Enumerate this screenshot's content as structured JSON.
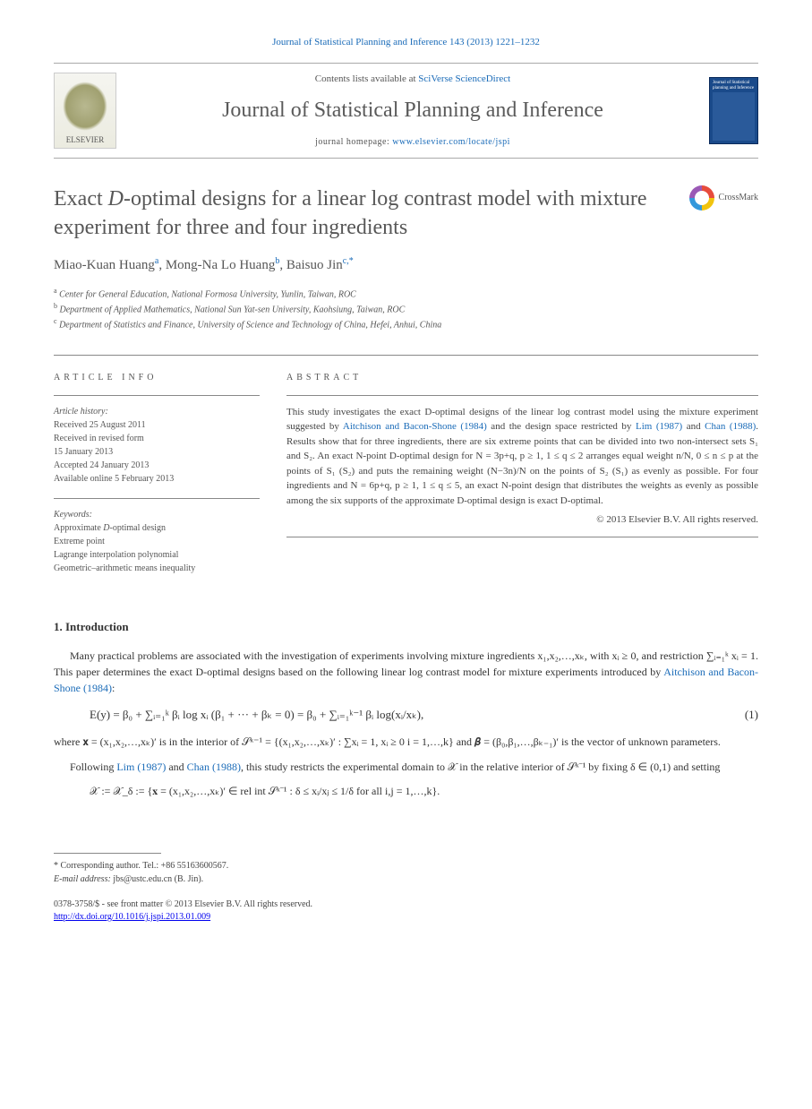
{
  "header": {
    "citation": "Journal of Statistical Planning and Inference 143 (2013) 1221–1232",
    "citation_link": "#"
  },
  "banner": {
    "elsevier_label": "ELSEVIER",
    "contents_prefix": "Contents lists available at ",
    "contents_link_text": "SciVerse ScienceDirect",
    "journal_title": "Journal of Statistical Planning and Inference",
    "homepage_prefix": "journal homepage: ",
    "homepage_url": "www.elsevier.com/locate/jspi",
    "cover_title": "Journal of Statistical planning and Inference"
  },
  "crossmark_label": "CrossMark",
  "article": {
    "title_prefix": "Exact ",
    "title_italic": "D",
    "title_rest": "-optimal designs for a linear log contrast model with mixture experiment for three and four ingredients",
    "authors_html": "Miao-Kuan Huang|a|, Mong-Na Lo Huang|b|, Baisuo Jin|c,*",
    "affiliations": {
      "a": "Center for General Education, National Formosa University, Yunlin, Taiwan, ROC",
      "b": "Department of Applied Mathematics, National Sun Yat-sen University, Kaohsiung, Taiwan, ROC",
      "c": "Department of Statistics and Finance, University of Science and Technology of China, Hefei, Anhui, China"
    }
  },
  "article_info": {
    "label": "article info",
    "history_label": "Article history:",
    "history": [
      "Received 25 August 2011",
      "Received in revised form",
      "15 January 2013",
      "Accepted 24 January 2013",
      "Available online 5 February 2013"
    ],
    "keywords_label": "Keywords:",
    "keywords": [
      "Approximate D-optimal design",
      "Extreme point",
      "Lagrange interpolation polynomial",
      "Geometric–arithmetic means inequality"
    ]
  },
  "abstract": {
    "label": "abstract",
    "text_parts": {
      "p1": "This study investigates the exact D-optimal designs of the linear log contrast model using the mixture experiment suggested by ",
      "ref1": "Aitchison and Bacon-Shone (1984)",
      "p2": " and the design space restricted by ",
      "ref2": "Lim (1987)",
      "p3": " and ",
      "ref3": "Chan (1988)",
      "p4": ". Results show that for three ingredients, there are six extreme points that can be divided into two non-intersect sets S₁ and S₂. An exact N-point D-optimal design for N = 3p+q, p ≥ 1, 1 ≤ q ≤ 2 arranges equal weight n/N, 0 ≤ n ≤ p at the points of S₁ (S₂) and puts the remaining weight (N−3n)/N on the points of S₂ (S₁) as evenly as possible. For four ingredients and N = 6p+q, p ≥ 1, 1 ≤ q ≤ 5, an exact N-point design that distributes the weights as evenly as possible among the six supports of the approximate D-optimal design is exact D-optimal."
    },
    "copyright": "© 2013 Elsevier B.V. All rights reserved."
  },
  "intro": {
    "heading": "1.  Introduction",
    "para1_a": "Many practical problems are associated with the investigation of experiments involving mixture ingredients x₁,x₂,…,xₖ, with xᵢ ≥ 0, and restriction ∑ᵢ₌₁ᵏ xᵢ = 1. This paper determines the exact D-optimal designs based on the following linear log contrast model for mixture experiments introduced by ",
    "para1_ref": "Aitchison and Bacon-Shone (1984)",
    "para1_b": ":",
    "equation1": "E(y) = β₀ + ∑ᵢ₌₁ᵏ βᵢ log xᵢ   (β₁ + ··· + βₖ = 0) = β₀ + ∑ᵢ₌₁ᵏ⁻¹ βᵢ log(xᵢ/xₖ),",
    "eq1_num": "(1)",
    "para2": "where 𝐱 = (x₁,x₂,…,xₖ)′ is in the interior of 𝒮ᵏ⁻¹ = {(x₁,x₂,…,xₖ)′ : ∑xᵢ = 1, xᵢ ≥ 0  i = 1,…,k} and 𝜷 = (β₀,β₁,…,βₖ₋₁)′ is the vector of unknown parameters.",
    "para3_a": "Following ",
    "para3_ref1": "Lim (1987)",
    "para3_b": " and ",
    "para3_ref2": "Chan (1988)",
    "para3_c": ", this study restricts the experimental domain to 𝒳 in the relative interior of 𝒮ᵏ⁻¹ by fixing δ ∈ (0,1) and setting",
    "set_def": "𝒳 := 𝒳_δ := {𝐱 = (x₁,x₂,…,xₖ)′ ∈ rel int 𝒮ᵏ⁻¹ : δ ≤ xᵢ/xⱼ ≤ 1/δ for all i,j = 1,…,k}."
  },
  "footnotes": {
    "corr": "* Corresponding author. Tel.: +86 55163600567.",
    "email_label": "E-mail address:",
    "email": "jbs@ustc.edu.cn (B. Jin)."
  },
  "footer": {
    "issn": "0378-3758/$ - see front matter © 2013 Elsevier B.V. All rights reserved.",
    "doi": "http://dx.doi.org/10.1016/j.jspi.2013.01.009"
  },
  "colors": {
    "link": "#1a6bb8",
    "heading_gray": "#575757",
    "body_gray": "#444444",
    "rule": "#888888",
    "cover_blue": "#1a4a8a"
  },
  "typography": {
    "body_font": "Georgia, Times New Roman, serif",
    "title_size_pt": 24,
    "journal_title_size_pt": 24,
    "body_size_pt": 12,
    "abstract_size_pt": 11,
    "small_size_pt": 10
  }
}
